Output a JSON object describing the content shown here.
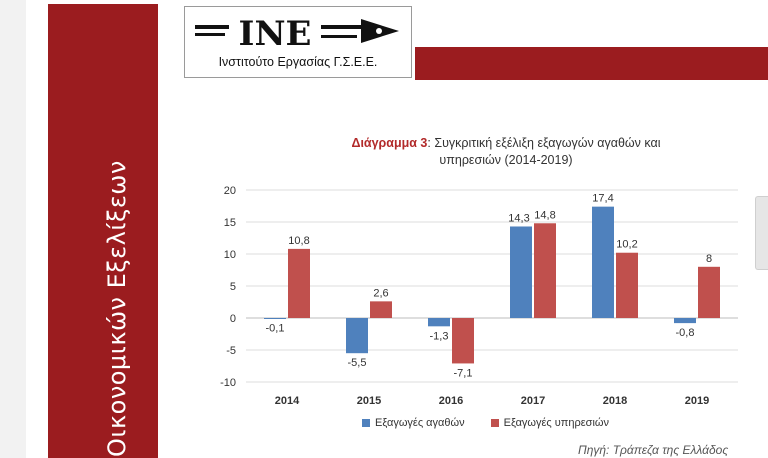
{
  "sidebar": {
    "title": "Οικονομικών Εξελίξεων"
  },
  "logo": {
    "mark": "INE",
    "caption": "Ινστιτούτο Εργασίας Γ.Σ.Ε.Ε."
  },
  "colors": {
    "accent": "#9b1c1f",
    "series_goods": "#4f81bd",
    "series_services": "#c0504d"
  },
  "chart_data": {
    "type": "bar",
    "title_lead": "Διάγραμμα 3",
    "title_rest": ": Συγκριτική εξέλιξη εξαγωγών αγαθών και",
    "title_line2": "υπηρεσιών (2014-2019)",
    "categories": [
      "2014",
      "2015",
      "2016",
      "2017",
      "2018",
      "2019"
    ],
    "series": [
      {
        "name": "Εξαγωγές αγαθών",
        "values": [
          -0.1,
          -5.5,
          -1.3,
          14.3,
          17.4,
          -0.8
        ],
        "labels": [
          "-0,1",
          "-5,5",
          "-1,3",
          "14,3",
          "17,4",
          "-0,8"
        ]
      },
      {
        "name": "Εξαγωγές υπηρεσιών",
        "values": [
          10.8,
          2.6,
          -7.1,
          14.8,
          10.2,
          8
        ],
        "labels": [
          "10,8",
          "2,6",
          "-7,1",
          "14,8",
          "10,2",
          "8"
        ]
      }
    ],
    "yticks": [
      "-10",
      "-5",
      "0",
      "5",
      "10",
      "15",
      "20"
    ],
    "ylim": [
      -10,
      20
    ],
    "grid": true,
    "legend_position": "bottom"
  },
  "source": {
    "text": "Πηγή: Τράπεζα της Ελλάδος"
  }
}
